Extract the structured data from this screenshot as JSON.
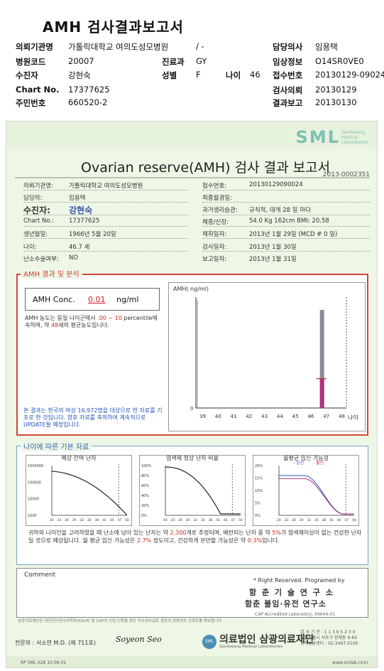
{
  "header": {
    "title": "AMH 검사결과보고서",
    "left": [
      {
        "label": "의뢰기관명",
        "value": "가톨릭대학교 여의도성모병원"
      },
      {
        "label": "병원코드",
        "value": "20007"
      },
      {
        "label": "수진자",
        "value": "강현숙"
      },
      {
        "label": "Chart No.",
        "value": "17377625"
      },
      {
        "label": "주민번호",
        "value": "660520-2"
      }
    ],
    "slash": "/ -",
    "dept_label": "진료과",
    "dept_value": "GY",
    "sex_label": "성별",
    "sex_value": "F",
    "age_label": "나이",
    "age_value": "46",
    "right": [
      {
        "label": "담당의사",
        "value": "임용택"
      },
      {
        "label": "임상정보",
        "value": "O14SR0VE0"
      },
      {
        "label": "접수번호",
        "value": "20130129-09024"
      },
      {
        "label": "검사의뢰",
        "value": "20130129"
      },
      {
        "label": "결과보고",
        "value": "20130130"
      }
    ]
  },
  "sheet": {
    "logo": "SML",
    "logo_sub": "Samkwang Medical Laboratories",
    "title": "Ovarian reserve(AMH) 검사 결과 보고서",
    "report_no": "2013-0002351",
    "left_info": [
      {
        "label": "의뢰기관명:",
        "value": "가톨릭대학교 여의도성모병원"
      },
      {
        "label": "담당의:",
        "value": "임용택"
      },
      {
        "label": "수진자:",
        "value": "강현숙"
      },
      {
        "label": "Chart No.:",
        "value": "17377625"
      },
      {
        "label": "생년월일:",
        "value": "1966년 5월 20일"
      },
      {
        "label": "나이:",
        "value": "46.7 세"
      },
      {
        "label": "난소수술여부:",
        "value": "NO"
      }
    ],
    "right_info": [
      {
        "label": "접수번호:",
        "value": "20130129090024"
      },
      {
        "label": "최종월경일:",
        "value": ""
      },
      {
        "label": "과거생리습관:",
        "value": "규칙적,  대개   28 일 마다"
      },
      {
        "label": "체중/신장:",
        "value": "54.0 Kg   162cm    BMI:  20.58"
      },
      {
        "label": "채취일자:",
        "value": "2013년 1월 29일    (MCD # 0 일)"
      },
      {
        "label": "검사일자:",
        "value": "2013년 1월 30일"
      },
      {
        "label": "보고일자:",
        "value": "2013년 1월 31일"
      }
    ],
    "amh": {
      "section_label": "AMH 결과 및 분석",
      "conc_label": "AMH Conc.",
      "conc_value": "0.01",
      "conc_unit": "ng/ml",
      "note_a": "AMH 농도는 동일 나이군에서",
      "note_pct": ".00 ~ 10",
      "note_b": "percentile에 속하며, 약",
      "note_age": "48",
      "note_c": "세의 평균농도입니다.",
      "note2": "본 결과는 한국의 여성 16,972명을 대상으로 한 자료를 기초로 한 것입니다. 향후 자료를 축적하여 계속적으로 UPDATE될 예정입니다."
    },
    "age": {
      "section_label": "나이에 따른 기본 자료",
      "chart1_title": "예상 잔여 난자",
      "chart2_title": "염색체 정상 난자 비율",
      "chart3_title": "월평균 임신 가능성",
      "legend_a": "임신",
      "legend_b": "출산",
      "note_a": "귀하의 나이인을 고려하였을 때 난소에 남아 있는 난자는 약",
      "note_eggs": "2,300",
      "note_b": "개로 추정되며, 배란되는 난자 중 약",
      "note_pct": "5%",
      "note_c": "가 염색체이상이 없는 건강한 난자일 것으로 예상됩니다. 월 평균 임신 가능성은",
      "note_preg": "2.7%",
      "note_d": "정도이고, 건강하게 분만할 가능성은 약",
      "note_birth": "0.3%",
      "note_e": "입니다."
    },
    "comment_label": "Comment",
    "rights": "* Right Reserved. Programed by",
    "prog1": "함 춘 기 술 연 구 소",
    "prog2": "함춘 불임·유전 연구소",
    "cap": "CAP  Accredited  Laboratory, 69644-01",
    "footnote": "삼광의료재단은 대한진단검사의학회(KSLM) 및 CAP의 신임 인증을 받은 우수검사실로 결과의 정확성과 신뢰도를 확보합니다.",
    "doctor": "전문의 : 서소연 M.D. (제 711호)",
    "signature": "Soyeon Seo",
    "foundation_seal": "SML",
    "foundation": "의료법인 삼광의료재단",
    "foundation_en": "Samkwang Medical Laboratories",
    "addr1": "검 사 기 관 : 1 1 3 6 5 2 0 0",
    "addr2": "서울특별시 서초구 양재동 9-60",
    "addr3": "고객상담센터 : 02-3497-5100",
    "rp": "RP  SML  028  10.06.01",
    "web": "www.smlab.co.kr"
  },
  "chart_data": [
    {
      "type": "bar",
      "title": "",
      "ylabel": "AMH( ng/ml)",
      "xlabel": "나이",
      "categories": [
        "39",
        "40",
        "41",
        "42",
        "43",
        "44",
        "45",
        "46",
        "47",
        "48"
      ],
      "y_tick_label": "0",
      "patient_age": 46.7,
      "patient_value": 0.01,
      "reference_value": 2.3,
      "ylim": [
        0,
        2.6
      ]
    },
    {
      "type": "line",
      "title": "예상 잔여 난자",
      "y_scale": "log",
      "y_ticks": [
        "1000000",
        "100000",
        "10000",
        "1000"
      ],
      "x_ticks": [
        "20",
        "23",
        "26",
        "29",
        "32",
        "35",
        "38",
        "41",
        "44",
        "47",
        "50"
      ],
      "marker_age": 46.7
    },
    {
      "type": "line",
      "title": "염색체 정상 난자 비율",
      "y_ticks": [
        "100%",
        "80%",
        "60%",
        "40%",
        "20%",
        "0%"
      ],
      "x_ticks": [
        "20",
        "23",
        "26",
        "29",
        "32",
        "35",
        "38",
        "41",
        "44",
        "47",
        "50"
      ],
      "marker_age": 46.7
    },
    {
      "type": "line",
      "title": "월평균 임신 가능성",
      "y_ticks": [
        "20%",
        "15%",
        "10%",
        "5%",
        "0%"
      ],
      "x_ticks": [
        "20",
        "23",
        "26",
        "29",
        "32",
        "35",
        "38",
        "41",
        "44",
        "47",
        "50"
      ],
      "series": [
        {
          "name": "임신"
        },
        {
          "name": "출산"
        }
      ],
      "marker_age": 46.7
    }
  ]
}
